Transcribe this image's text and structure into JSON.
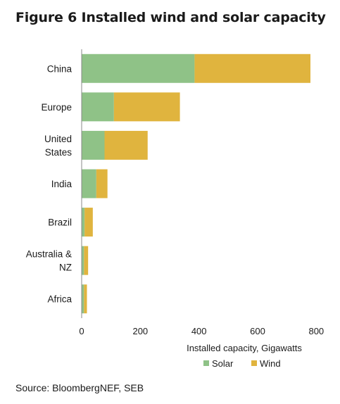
{
  "title": "Figure 6 Installed wind and solar capacity",
  "source": "Source: BloombergNEF, SEB",
  "colors": {
    "solar": "#8fc287",
    "wind": "#e0b43e",
    "axis": "#888888"
  },
  "chart_data": {
    "type": "bar",
    "orientation": "horizontal",
    "stacked": true,
    "categories": [
      "China",
      "Europe",
      "United States",
      "India",
      "Brazil",
      "Australia & NZ",
      "Africa"
    ],
    "category_lines": [
      [
        "China"
      ],
      [
        "Europe"
      ],
      [
        "United",
        "States"
      ],
      [
        "India"
      ],
      [
        "Brazil"
      ],
      [
        "Australia &",
        "NZ"
      ],
      [
        "Africa"
      ]
    ],
    "series": [
      {
        "name": "Solar",
        "values": [
          385,
          110,
          78,
          50,
          10,
          8,
          8
        ]
      },
      {
        "name": "Wind",
        "values": [
          395,
          225,
          147,
          38,
          28,
          14,
          10
        ]
      }
    ],
    "xlabel": "Installed capacity, Gigawatts",
    "xlim": [
      0,
      800
    ],
    "xticks": [
      0,
      200,
      400,
      600,
      800
    ],
    "grid": false,
    "legend": "bottom"
  }
}
